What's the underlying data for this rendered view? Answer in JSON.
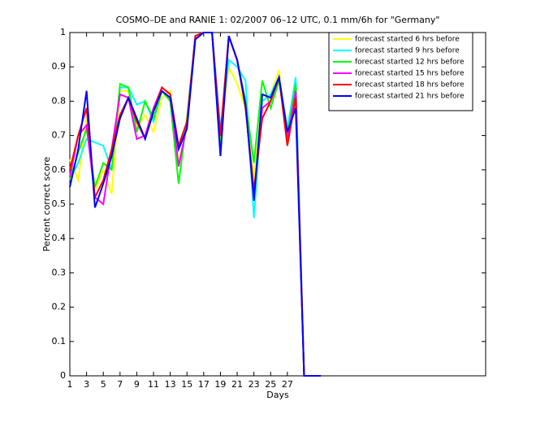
{
  "chart_data": {
    "type": "line",
    "title": "COSMO–DE and RANIE 1: 02/2007 06–12 UTC, 0.1 mm/6h for \"Germany\"",
    "xlabel": "Days",
    "ylabel": "Percent correct score",
    "x": [
      1,
      2,
      3,
      4,
      5,
      6,
      7,
      8,
      9,
      10,
      11,
      12,
      13,
      14,
      15,
      16,
      17,
      18,
      19,
      20,
      21,
      22,
      23,
      24,
      25,
      26,
      27,
      28,
      29,
      30,
      31
    ],
    "series": [
      {
        "name": "forecast started 6 hrs before",
        "color": "#ffff00",
        "values": [
          0.63,
          0.57,
          0.75,
          0.54,
          0.6,
          0.53,
          0.83,
          0.83,
          0.72,
          0.76,
          0.71,
          0.81,
          0.83,
          0.62,
          0.72,
          0.99,
          1,
          1,
          0.7,
          0.9,
          0.85,
          0.78,
          0.57,
          0.8,
          0.82,
          0.89,
          0.7,
          0.84,
          0,
          0,
          0
        ]
      },
      {
        "name": "forecast started 9 hrs before",
        "color": "#00ffff",
        "values": [
          0.57,
          0.62,
          0.69,
          0.68,
          0.67,
          0.6,
          0.84,
          0.84,
          0.79,
          0.8,
          0.74,
          0.83,
          0.81,
          0.66,
          0.74,
          0.99,
          1,
          1,
          0.72,
          0.92,
          0.9,
          0.86,
          0.46,
          0.8,
          0.82,
          0.87,
          0.72,
          0.87,
          0,
          0,
          0
        ]
      },
      {
        "name": "forecast started 12 hrs before",
        "color": "#00ff00",
        "values": [
          0.57,
          0.65,
          0.72,
          0.55,
          0.62,
          0.6,
          0.85,
          0.84,
          0.71,
          0.8,
          0.75,
          0.83,
          0.8,
          0.56,
          0.75,
          0.99,
          1,
          1,
          0.68,
          0.99,
          0.92,
          0.8,
          0.62,
          0.86,
          0.78,
          0.86,
          0.7,
          0.85,
          0,
          0,
          0
        ]
      },
      {
        "name": "forecast started 15 hrs before",
        "color": "#ff00ff",
        "values": [
          0.58,
          0.7,
          0.73,
          0.52,
          0.5,
          0.66,
          0.82,
          0.81,
          0.69,
          0.7,
          0.78,
          0.84,
          0.82,
          0.61,
          0.73,
          0.99,
          1,
          1,
          0.7,
          0.99,
          0.92,
          0.79,
          0.52,
          0.78,
          0.8,
          0.87,
          0.69,
          0.83,
          0,
          0,
          0
        ]
      },
      {
        "name": "forecast started 18 hrs before",
        "color": "#ff0000",
        "values": [
          0.6,
          0.7,
          0.78,
          0.52,
          0.57,
          0.66,
          0.76,
          0.81,
          0.74,
          0.69,
          0.77,
          0.84,
          0.82,
          0.67,
          0.74,
          0.99,
          1,
          1,
          0.7,
          0.99,
          0.92,
          0.78,
          0.54,
          0.75,
          0.8,
          0.87,
          0.67,
          0.81,
          0,
          0,
          0
        ]
      },
      {
        "name": "forecast started 21 hrs before",
        "color": "#0000ff",
        "values": [
          0.55,
          0.66,
          0.83,
          0.49,
          0.56,
          0.64,
          0.75,
          0.81,
          0.75,
          0.69,
          0.77,
          0.83,
          0.81,
          0.66,
          0.72,
          0.98,
          1,
          1,
          0.64,
          0.99,
          0.92,
          0.79,
          0.51,
          0.82,
          0.81,
          0.87,
          0.71,
          0.78,
          0,
          0,
          0
        ]
      }
    ],
    "xlim": [
      1,
      50.7
    ],
    "ylim": [
      0,
      1
    ],
    "xticks": [
      1,
      3,
      5,
      7,
      9,
      11,
      13,
      15,
      17,
      19,
      21,
      23,
      25,
      27
    ],
    "yticks": [
      0,
      0.1,
      0.2,
      0.3,
      0.4,
      0.5,
      0.6,
      0.7,
      0.8,
      0.9,
      1
    ]
  }
}
